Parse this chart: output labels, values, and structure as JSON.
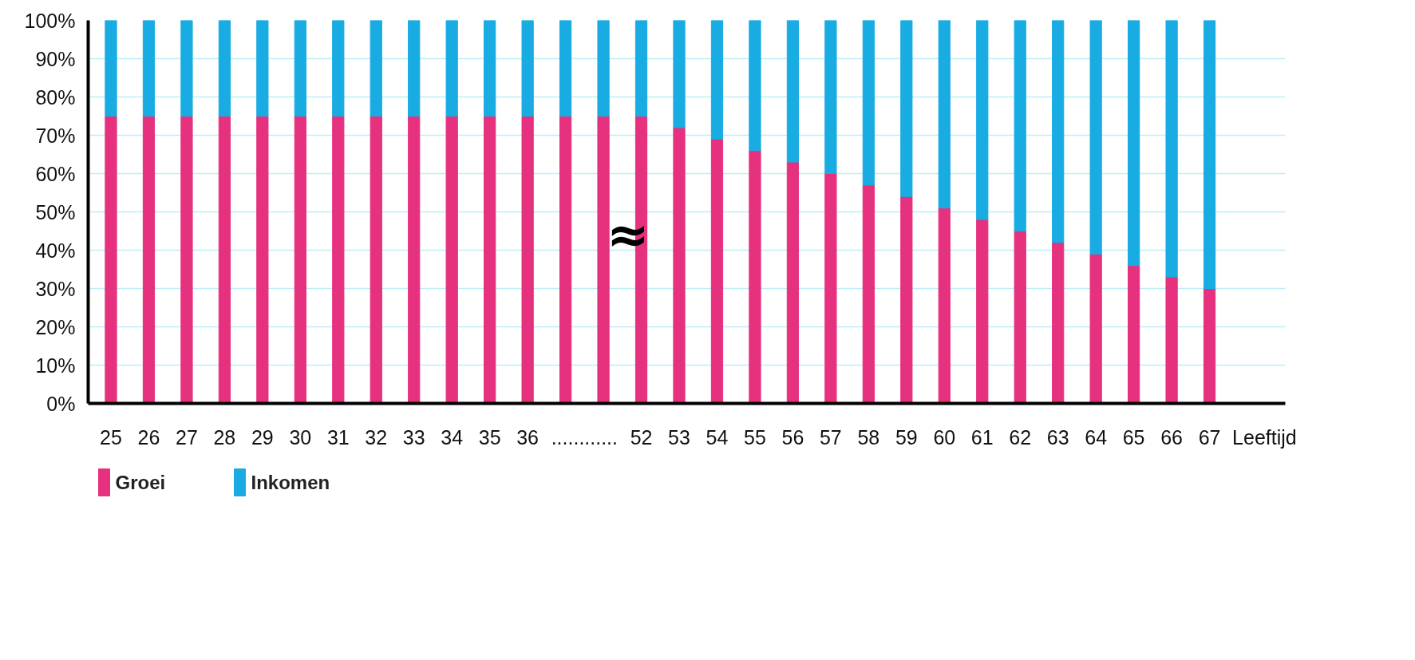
{
  "chart_data": {
    "type": "bar",
    "stacked": true,
    "xlabel": "Leeftijd",
    "categories": [
      "25",
      "26",
      "27",
      "28",
      "29",
      "30",
      "31",
      "32",
      "33",
      "34",
      "35",
      "36",
      null,
      null,
      "52",
      "53",
      "54",
      "55",
      "56",
      "57",
      "58",
      "59",
      "60",
      "61",
      "62",
      "63",
      "64",
      "65",
      "66",
      "67"
    ],
    "series": [
      {
        "name": "Groei",
        "color": "#e5317e",
        "values": [
          75,
          75,
          75,
          75,
          75,
          75,
          75,
          75,
          75,
          75,
          75,
          75,
          75,
          75,
          75,
          72,
          69,
          66,
          63,
          60,
          57,
          54,
          51,
          48,
          45,
          42,
          39,
          36,
          33,
          30
        ]
      },
      {
        "name": "Inkomen",
        "color": "#18ace3",
        "values": [
          25,
          25,
          25,
          25,
          25,
          25,
          25,
          25,
          25,
          25,
          25,
          25,
          25,
          25,
          25,
          28,
          31,
          34,
          37,
          40,
          43,
          46,
          49,
          52,
          55,
          58,
          61,
          64,
          67,
          70
        ]
      }
    ],
    "ylim": [
      0,
      100
    ],
    "yticks": [
      {
        "value": 0,
        "label": "0%"
      },
      {
        "value": 10,
        "label": "10%"
      },
      {
        "value": 20,
        "label": "20%"
      },
      {
        "value": 30,
        "label": "30%"
      },
      {
        "value": 40,
        "label": "40%"
      },
      {
        "value": 50,
        "label": "50%"
      },
      {
        "value": 60,
        "label": "60%"
      },
      {
        "value": 70,
        "label": "70%"
      },
      {
        "value": 80,
        "label": "80%"
      },
      {
        "value": 90,
        "label": "90%"
      },
      {
        "value": 100,
        "label": "100%"
      }
    ],
    "grid": "y",
    "legend": "bottom left",
    "annotations": [
      "............",
      "≈"
    ]
  }
}
